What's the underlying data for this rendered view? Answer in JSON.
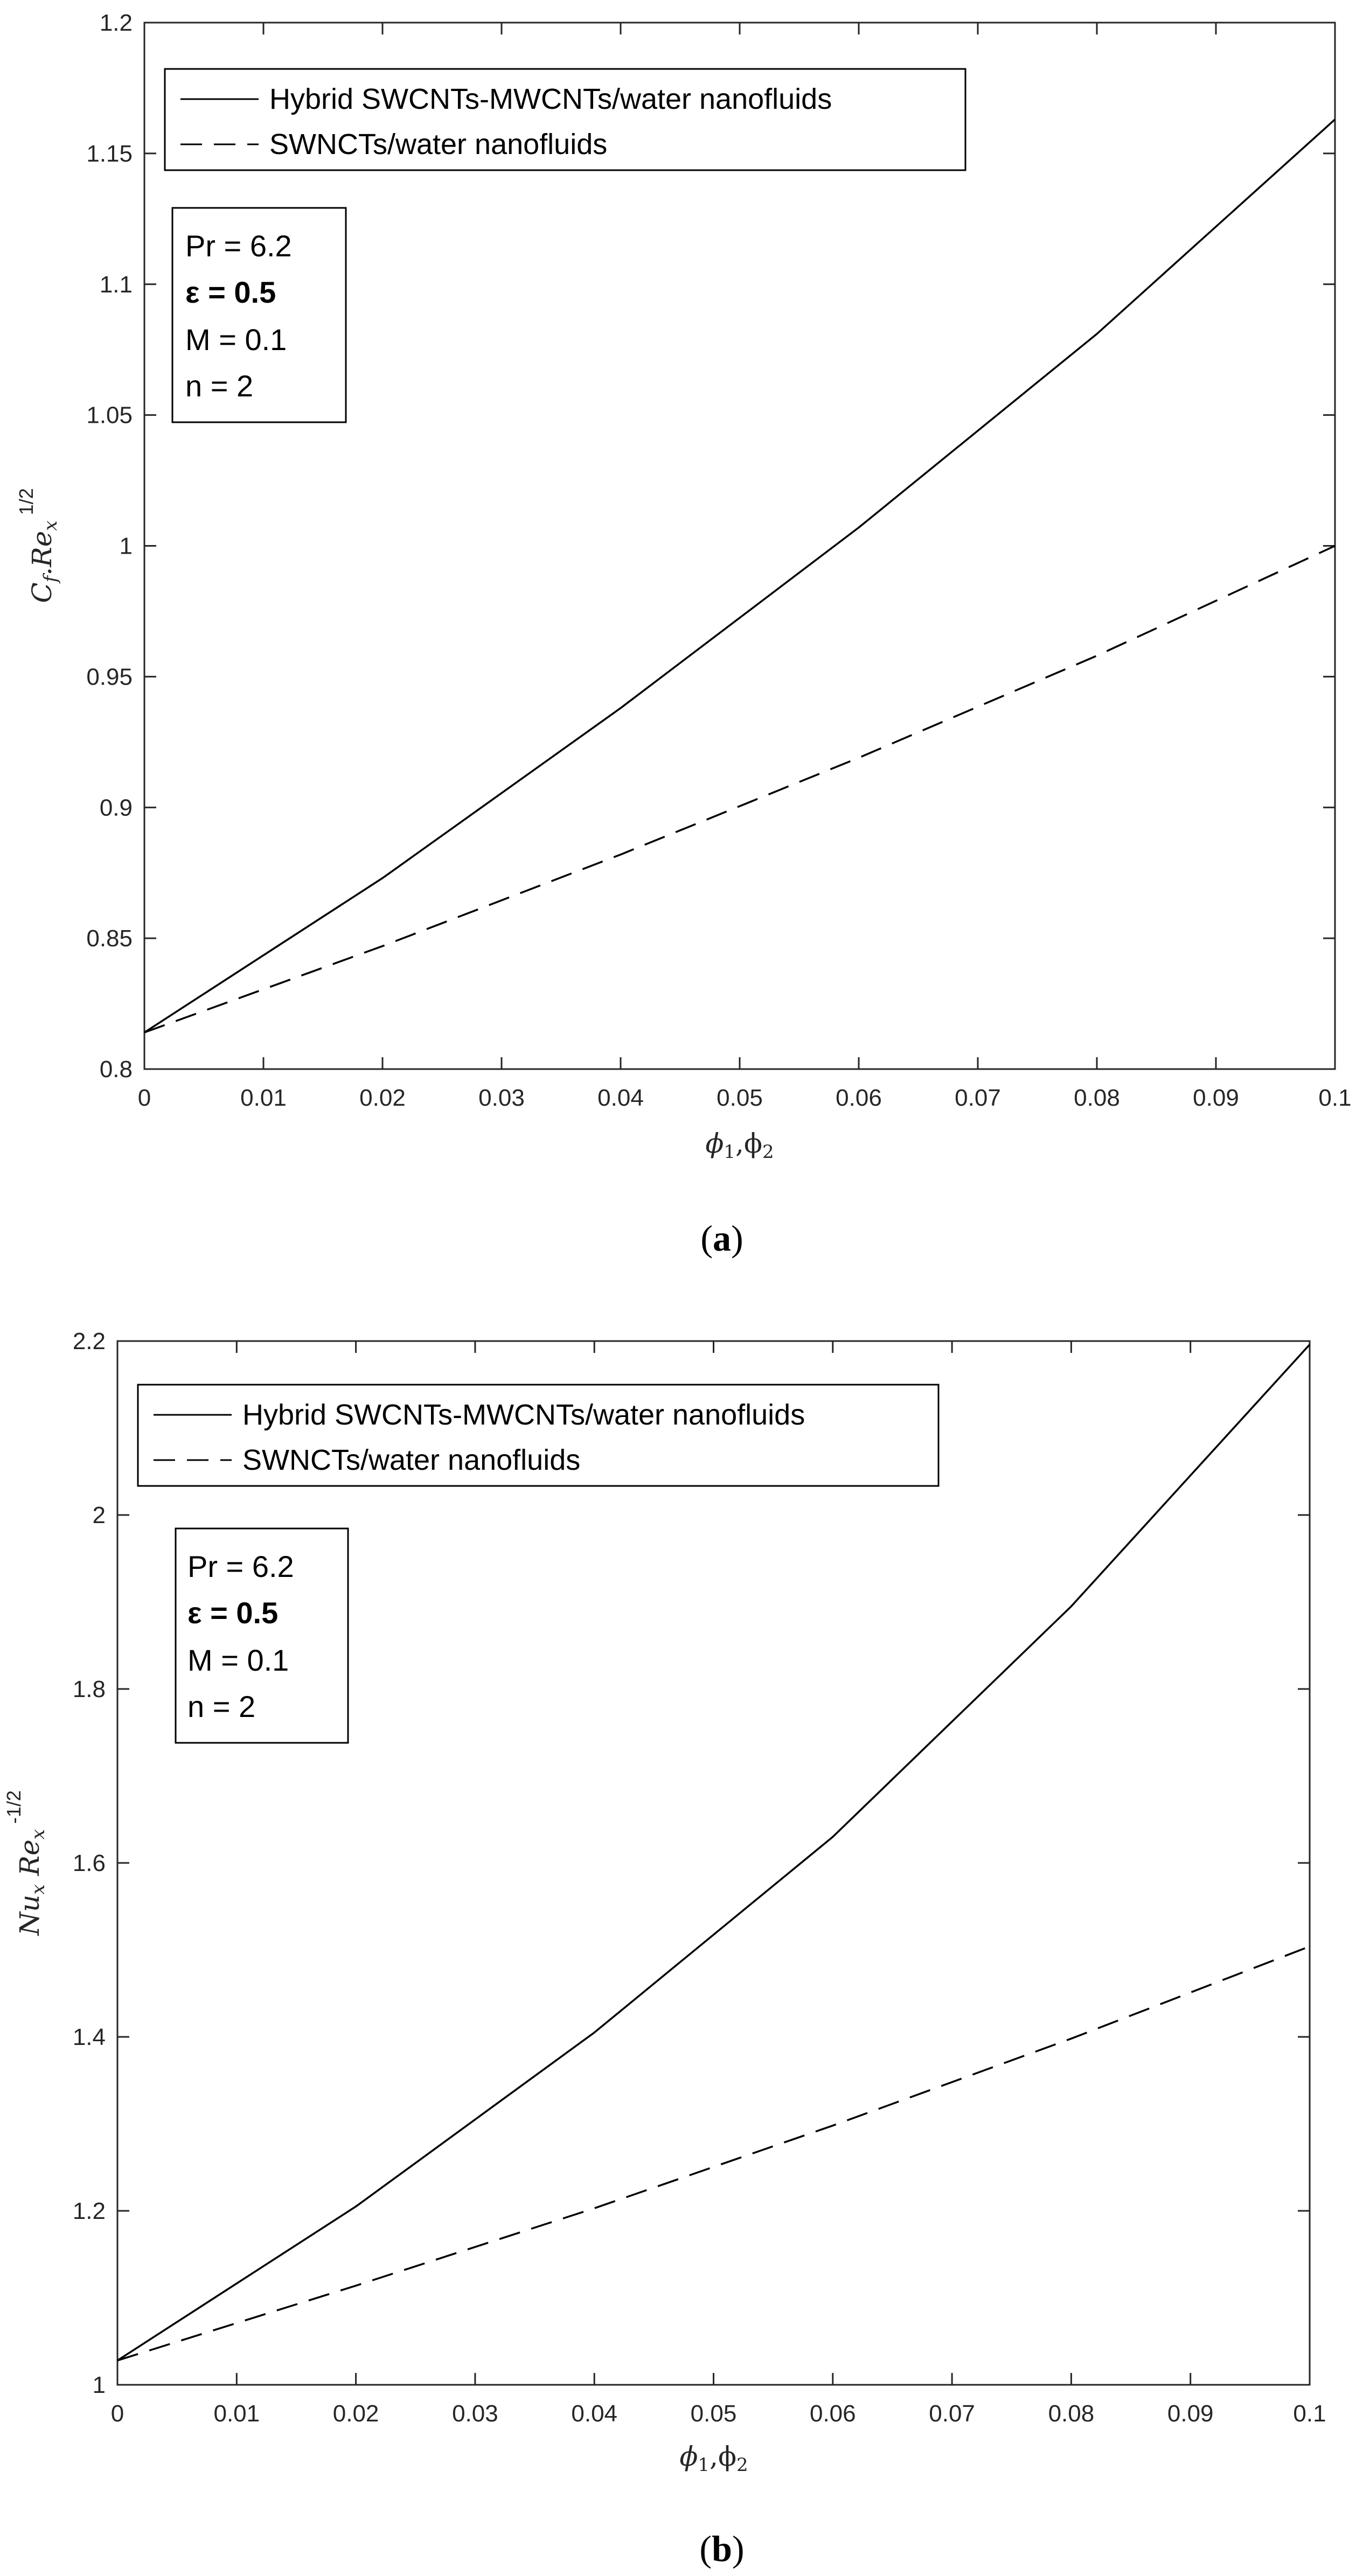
{
  "figure": {
    "captions": [
      "(a)",
      "(b)"
    ]
  },
  "chart_data": [
    {
      "type": "line",
      "panel_caption": "(a)",
      "xlabel": "φ1,φ2",
      "ylabel": "Cf.Rex1/2",
      "xlim": [
        0,
        0.1
      ],
      "ylim": [
        0.8,
        1.2
      ],
      "x_ticks": [
        "0",
        "0.01",
        "0.02",
        "0.03",
        "0.04",
        "0.05",
        "0.06",
        "0.07",
        "0.08",
        "0.09",
        "0.1"
      ],
      "y_ticks": [
        "0.8",
        "0.85",
        "0.9",
        "0.95",
        "1",
        "1.05",
        "1.1",
        "1.15",
        "1.2"
      ],
      "x": [
        0,
        0.02,
        0.04,
        0.06,
        0.08,
        0.1
      ],
      "series": [
        {
          "name": "Hybrid SWCNTs-MWCNTs/water nanofluids",
          "style": "solid",
          "values": [
            0.814,
            0.873,
            0.938,
            1.007,
            1.081,
            1.163
          ]
        },
        {
          "name": "SWNCTs/water nanofluids",
          "style": "dashed",
          "values": [
            0.814,
            0.847,
            0.882,
            0.919,
            0.958,
            1.0
          ]
        }
      ],
      "legend_position": "top-left",
      "annotations": [
        "Pr = 6.2",
        "ε = 0.5",
        "M = 0.1",
        "n = 2"
      ],
      "grid": false
    },
    {
      "type": "line",
      "panel_caption": "(b)",
      "xlabel": "φ1,φ2",
      "ylabel": "Nux Rex-1/2",
      "xlim": [
        0,
        0.1
      ],
      "ylim": [
        1,
        2.2
      ],
      "x_ticks": [
        "0",
        "0.01",
        "0.02",
        "0.03",
        "0.04",
        "0.05",
        "0.06",
        "0.07",
        "0.08",
        "0.09",
        "0.1"
      ],
      "y_ticks": [
        "1",
        "1.2",
        "1.4",
        "1.6",
        "1.8",
        "2",
        "2.2"
      ],
      "x": [
        0,
        0.02,
        0.04,
        0.06,
        0.08,
        0.1
      ],
      "series": [
        {
          "name": "Hybrid SWCNTs-MWCNTs/water nanofluids",
          "style": "solid",
          "values": [
            1.028,
            1.205,
            1.405,
            1.63,
            1.895,
            2.196
          ]
        },
        {
          "name": "SWNCTs/water nanofluids",
          "style": "dashed",
          "values": [
            1.028,
            1.114,
            1.203,
            1.298,
            1.398,
            1.504
          ]
        }
      ],
      "legend_position": "top-left",
      "annotations": [
        "Pr = 6.2",
        "ε = 0.5",
        "M = 0.1",
        "n = 2"
      ],
      "grid": false
    }
  ]
}
